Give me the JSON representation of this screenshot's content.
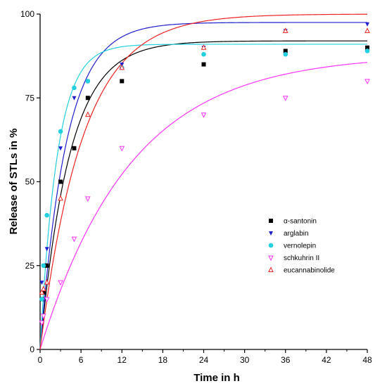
{
  "chart_data": {
    "type": "scatter",
    "xlabel": "Time in h",
    "ylabel": "Release of STLs in %",
    "xlim": [
      0,
      48
    ],
    "ylim": [
      0,
      100
    ],
    "x_ticks": [
      0,
      6,
      12,
      18,
      24,
      30,
      36,
      42,
      48
    ],
    "y_ticks": [
      0,
      25,
      50,
      75,
      100
    ],
    "grid": false,
    "legend_position": "right-middle",
    "series": [
      {
        "name": "α-santonin",
        "color": "#000000",
        "marker": "square",
        "points": [
          [
            0.25,
            15
          ],
          [
            0.5,
            17
          ],
          [
            0.75,
            25
          ],
          [
            1,
            25
          ],
          [
            3,
            50
          ],
          [
            5,
            60
          ],
          [
            7,
            75
          ],
          [
            12,
            80
          ],
          [
            24,
            85
          ],
          [
            36,
            89
          ],
          [
            48,
            90
          ]
        ],
        "fit": {
          "plateau": 92,
          "k": 0.23
        }
      },
      {
        "name": "arglabin",
        "color": "#1f1fcf",
        "marker": "triangle-down-filled",
        "points": [
          [
            0.25,
            20
          ],
          [
            0.5,
            25
          ],
          [
            1,
            30
          ],
          [
            3,
            60
          ],
          [
            5,
            75
          ],
          [
            7,
            80
          ],
          [
            12,
            85
          ],
          [
            24,
            90
          ],
          [
            36,
            95
          ],
          [
            48,
            97
          ]
        ],
        "fit": {
          "plateau": 97.5,
          "k": 0.26
        }
      },
      {
        "name": "vernolepin",
        "color": "#22d0e0",
        "marker": "circle",
        "points": [
          [
            0.25,
            15
          ],
          [
            0.5,
            25
          ],
          [
            1,
            40
          ],
          [
            3,
            65
          ],
          [
            5,
            78
          ],
          [
            7,
            80
          ],
          [
            12,
            84
          ],
          [
            24,
            88
          ],
          [
            36,
            88
          ],
          [
            48,
            89
          ]
        ],
        "fit": {
          "plateau": 91,
          "k": 0.4
        }
      },
      {
        "name": "schkuhrin II",
        "color": "#ff33ff",
        "marker": "triangle-down-open",
        "points": [
          [
            0.25,
            8
          ],
          [
            0.5,
            10
          ],
          [
            1,
            15
          ],
          [
            3,
            20
          ],
          [
            5,
            33
          ],
          [
            7,
            45
          ],
          [
            12,
            60
          ],
          [
            24,
            70
          ],
          [
            36,
            75
          ],
          [
            48,
            80
          ]
        ],
        "fit": {
          "plateau": 88,
          "k": 0.075
        }
      },
      {
        "name": "eucannabinolide",
        "color": "#ee2222",
        "marker": "triangle-up-open",
        "points": [
          [
            0.25,
            17
          ],
          [
            0.5,
            18
          ],
          [
            1,
            20
          ],
          [
            3,
            45
          ],
          [
            7,
            70
          ],
          [
            12,
            84
          ],
          [
            24,
            90
          ],
          [
            36,
            95
          ],
          [
            48,
            95
          ]
        ],
        "fit": {
          "plateau": 100,
          "k": 0.16
        }
      }
    ]
  }
}
